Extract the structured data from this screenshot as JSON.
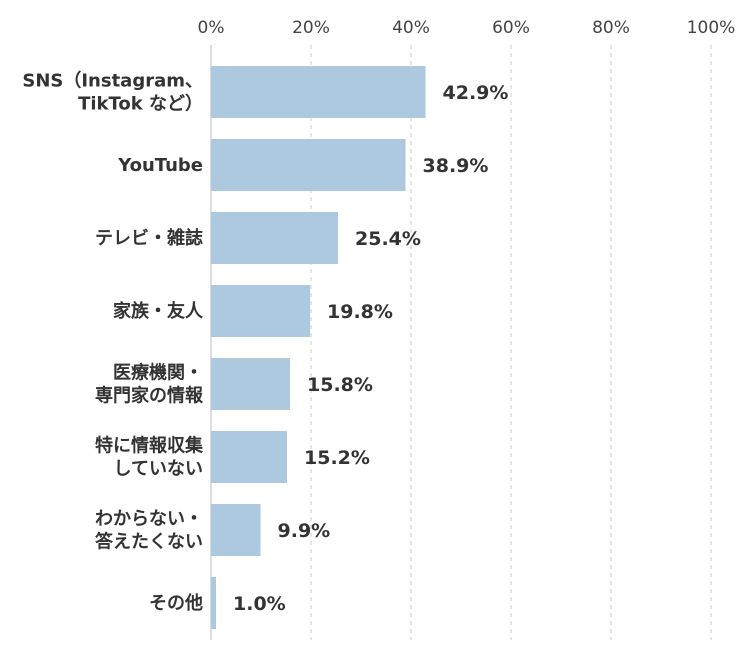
{
  "chart_data": {
    "type": "bar",
    "orientation": "horizontal",
    "title": "",
    "xlabel": "",
    "ylabel": "",
    "xlim": [
      0,
      100
    ],
    "x_ticks": [
      "0%",
      "20%",
      "40%",
      "60%",
      "80%",
      "100%"
    ],
    "x_tick_values": [
      0,
      20,
      40,
      60,
      80,
      100
    ],
    "grid": true,
    "legend": "none",
    "categories": [
      [
        "SNS（Instagram、",
        "TikTok など）"
      ],
      [
        "YouTube"
      ],
      [
        "テレビ・雑誌"
      ],
      [
        "家族・友人"
      ],
      [
        "医療機関・",
        "専門家の情報"
      ],
      [
        "特に情報収集",
        "していない"
      ],
      [
        "わからない・",
        "答えたくない"
      ],
      [
        "その他"
      ]
    ],
    "values": [
      42.9,
      38.9,
      25.4,
      19.8,
      15.8,
      15.2,
      9.9,
      1.0
    ],
    "value_labels": [
      "42.9%",
      "38.9%",
      "25.4%",
      "19.8%",
      "15.8%",
      "15.2%",
      "9.9%",
      "1.0%"
    ],
    "bar_color": "#adc9e0"
  }
}
